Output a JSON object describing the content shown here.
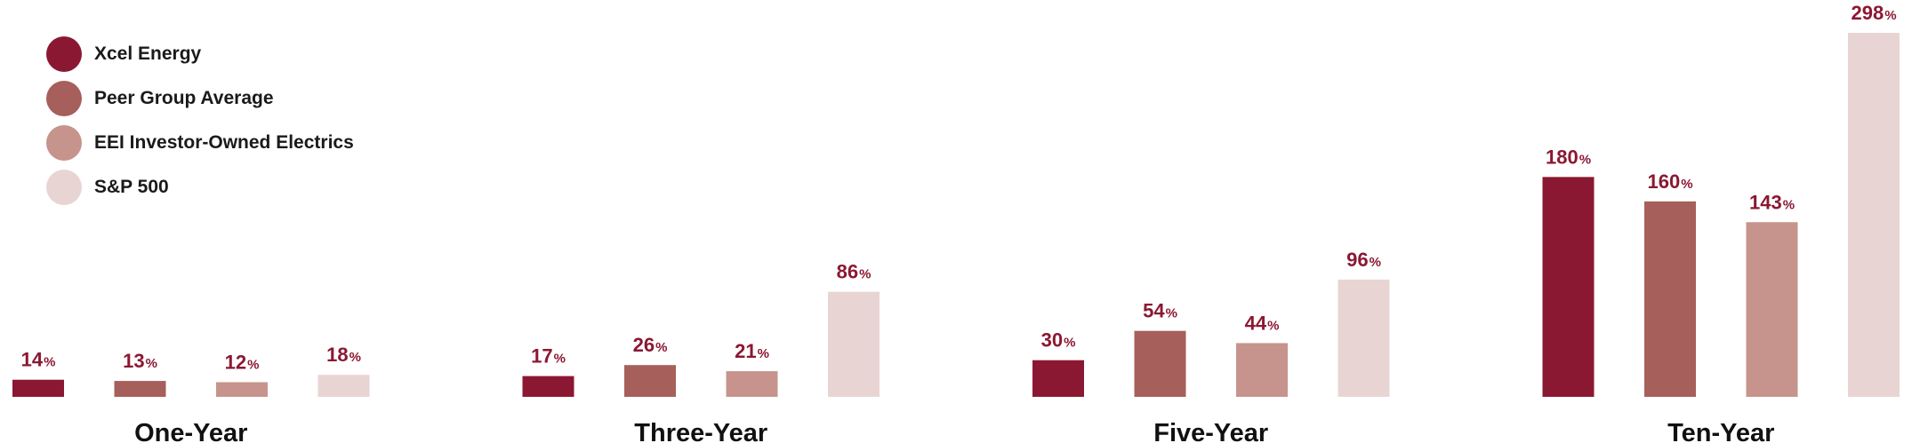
{
  "chart_data": {
    "type": "bar",
    "categories": [
      "One-Year",
      "Three-Year",
      "Five-Year",
      "Ten-Year"
    ],
    "series": [
      {
        "name": "Xcel Energy",
        "color": "#8B1832",
        "values": [
          14,
          17,
          30,
          180
        ]
      },
      {
        "name": "Peer Group Average",
        "color": "#A65F5A",
        "values": [
          13,
          26,
          54,
          160
        ]
      },
      {
        "name": "EEI Investor-Owned Electrics",
        "color": "#C6948D",
        "values": [
          12,
          21,
          44,
          143
        ]
      },
      {
        "name": "S&P 500",
        "color": "#E8D5D3",
        "values": [
          18,
          86,
          96,
          298
        ]
      }
    ],
    "value_suffix": "%",
    "value_label_color": "#8B1832",
    "ylim": [
      0,
      298
    ],
    "grid": false,
    "legend_position": "top-left"
  }
}
